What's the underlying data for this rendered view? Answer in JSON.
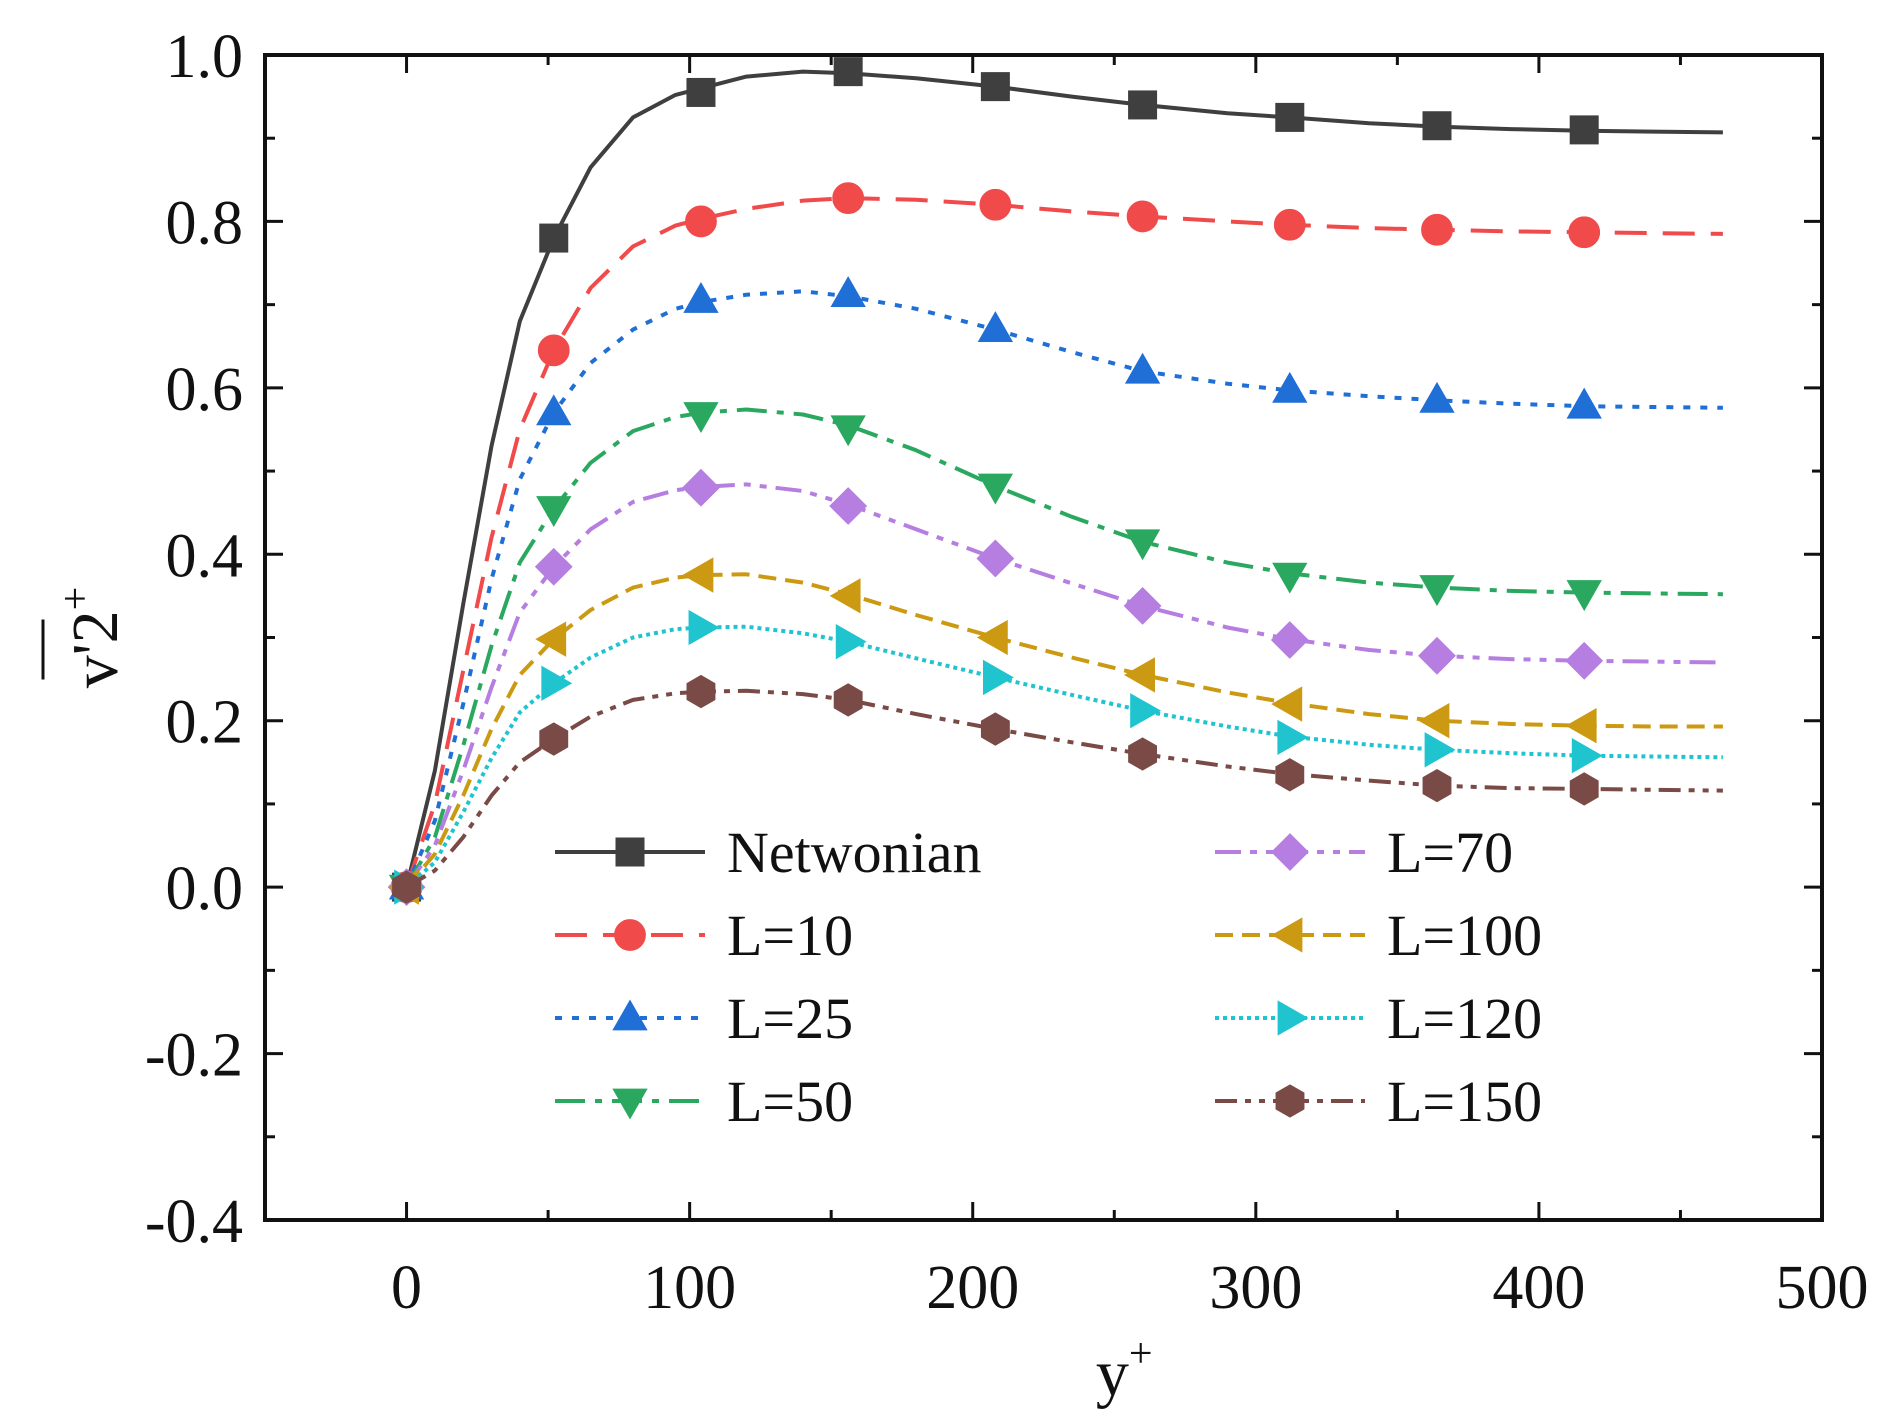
{
  "chart_data": {
    "type": "line",
    "title": "",
    "xlabel": "y",
    "xlabel_sup": "+",
    "ylabel": "v'2",
    "ylabel_sup": "+",
    "xlim": [
      -50,
      500
    ],
    "ylim": [
      -0.4,
      1.0
    ],
    "xticks": [
      0,
      100,
      200,
      300,
      400,
      500
    ],
    "yticks": [
      -0.4,
      -0.2,
      0.0,
      0.2,
      0.4,
      0.6,
      0.8,
      1.0
    ],
    "xtick_labels": [
      "0",
      "100",
      "200",
      "300",
      "400",
      "500"
    ],
    "ytick_labels": [
      "-0.4",
      "-0.2",
      "0.0",
      "0.2",
      "0.4",
      "0.6",
      "0.8",
      "1.0"
    ],
    "grid": false,
    "legend_position": "lower-center",
    "x_markers": [
      0,
      52,
      104,
      156,
      208,
      260,
      312,
      364,
      416
    ],
    "series": [
      {
        "name": "Netwonian",
        "color": "#3f3f3f",
        "marker": "square",
        "dash": "solid",
        "values": [
          0.0,
          0.78,
          0.955,
          0.98,
          0.962,
          0.94,
          0.925,
          0.915,
          0.91
        ],
        "curve_x": [
          0,
          10,
          20,
          30,
          40,
          52,
          65,
          80,
          95,
          104,
          120,
          140,
          156,
          180,
          208,
          235,
          260,
          290,
          312,
          340,
          364,
          390,
          416,
          440,
          465
        ],
        "curve_y": [
          0.0,
          0.14,
          0.34,
          0.53,
          0.68,
          0.78,
          0.865,
          0.925,
          0.952,
          0.96,
          0.974,
          0.98,
          0.978,
          0.972,
          0.962,
          0.95,
          0.94,
          0.93,
          0.925,
          0.918,
          0.914,
          0.911,
          0.909,
          0.908,
          0.907
        ]
      },
      {
        "name": "L=10",
        "color": "#f04a4a",
        "marker": "circle",
        "dash": "32,16",
        "values": [
          0.0,
          0.645,
          0.8,
          0.828,
          0.82,
          0.806,
          0.796,
          0.79,
          0.787
        ],
        "curve_x": [
          0,
          10,
          20,
          30,
          40,
          52,
          65,
          80,
          95,
          104,
          120,
          140,
          156,
          180,
          208,
          235,
          260,
          290,
          312,
          340,
          364,
          390,
          416,
          440,
          465
        ],
        "curve_y": [
          0.0,
          0.1,
          0.26,
          0.42,
          0.55,
          0.645,
          0.72,
          0.77,
          0.795,
          0.803,
          0.815,
          0.825,
          0.828,
          0.826,
          0.82,
          0.812,
          0.806,
          0.8,
          0.796,
          0.792,
          0.79,
          0.788,
          0.787,
          0.786,
          0.785
        ]
      },
      {
        "name": "L=25",
        "color": "#1f6fd6",
        "marker": "triangle-up",
        "dash": "7,10",
        "values": [
          0.0,
          0.57,
          0.705,
          0.712,
          0.67,
          0.62,
          0.597,
          0.585,
          0.578
        ],
        "curve_x": [
          0,
          10,
          20,
          30,
          40,
          52,
          65,
          80,
          95,
          104,
          120,
          140,
          156,
          180,
          208,
          235,
          260,
          290,
          312,
          340,
          364,
          390,
          416,
          440,
          465
        ],
        "curve_y": [
          0.0,
          0.08,
          0.22,
          0.37,
          0.49,
          0.57,
          0.63,
          0.67,
          0.695,
          0.703,
          0.712,
          0.716,
          0.71,
          0.695,
          0.67,
          0.643,
          0.62,
          0.605,
          0.597,
          0.59,
          0.585,
          0.581,
          0.578,
          0.577,
          0.576
        ]
      },
      {
        "name": "L=50",
        "color": "#2aa85f",
        "marker": "triangle-down",
        "dash": "30,10,7,10",
        "values": [
          0.0,
          0.455,
          0.568,
          0.552,
          0.482,
          0.415,
          0.375,
          0.36,
          0.354
        ],
        "curve_x": [
          0,
          10,
          20,
          30,
          40,
          52,
          65,
          80,
          95,
          104,
          120,
          140,
          156,
          180,
          208,
          235,
          260,
          290,
          312,
          340,
          364,
          390,
          416,
          440,
          465
        ],
        "curve_y": [
          0.0,
          0.06,
          0.17,
          0.29,
          0.39,
          0.455,
          0.51,
          0.548,
          0.565,
          0.57,
          0.574,
          0.568,
          0.555,
          0.525,
          0.482,
          0.445,
          0.415,
          0.39,
          0.377,
          0.366,
          0.36,
          0.356,
          0.354,
          0.353,
          0.352
        ]
      },
      {
        "name": "L=70",
        "color": "#b57ee0",
        "marker": "diamond",
        "dash": "26,9,7,9,7,9",
        "values": [
          0.0,
          0.385,
          0.48,
          0.458,
          0.395,
          0.338,
          0.297,
          0.278,
          0.272
        ],
        "curve_x": [
          0,
          10,
          20,
          30,
          40,
          52,
          65,
          80,
          95,
          104,
          120,
          140,
          156,
          180,
          208,
          235,
          260,
          290,
          312,
          340,
          364,
          390,
          416,
          440,
          465
        ],
        "curve_y": [
          0.0,
          0.05,
          0.14,
          0.24,
          0.33,
          0.385,
          0.43,
          0.463,
          0.477,
          0.481,
          0.484,
          0.476,
          0.46,
          0.43,
          0.395,
          0.365,
          0.338,
          0.312,
          0.298,
          0.285,
          0.278,
          0.274,
          0.272,
          0.271,
          0.27
        ]
      },
      {
        "name": "L=100",
        "color": "#cc9a12",
        "marker": "triangle-left",
        "dash": "18,9",
        "values": [
          0.0,
          0.298,
          0.375,
          0.35,
          0.3,
          0.255,
          0.22,
          0.2,
          0.194
        ],
        "curve_x": [
          0,
          10,
          20,
          30,
          40,
          52,
          65,
          80,
          95,
          104,
          120,
          140,
          156,
          180,
          208,
          235,
          260,
          290,
          312,
          340,
          364,
          390,
          416,
          440,
          465
        ],
        "curve_y": [
          0.0,
          0.04,
          0.11,
          0.19,
          0.255,
          0.298,
          0.333,
          0.36,
          0.372,
          0.375,
          0.376,
          0.366,
          0.352,
          0.327,
          0.3,
          0.276,
          0.255,
          0.234,
          0.221,
          0.208,
          0.2,
          0.196,
          0.194,
          0.193,
          0.193
        ]
      },
      {
        "name": "L=120",
        "color": "#1fc4cf",
        "marker": "triangle-right",
        "dash": "4,4",
        "values": [
          0.0,
          0.245,
          0.312,
          0.295,
          0.252,
          0.212,
          0.18,
          0.165,
          0.158
        ],
        "curve_x": [
          0,
          10,
          20,
          30,
          40,
          52,
          65,
          80,
          95,
          104,
          120,
          140,
          156,
          180,
          208,
          235,
          260,
          290,
          312,
          340,
          364,
          390,
          416,
          440,
          465
        ],
        "curve_y": [
          0.0,
          0.03,
          0.09,
          0.155,
          0.21,
          0.245,
          0.276,
          0.3,
          0.31,
          0.312,
          0.313,
          0.305,
          0.295,
          0.275,
          0.252,
          0.231,
          0.212,
          0.193,
          0.181,
          0.171,
          0.165,
          0.161,
          0.158,
          0.157,
          0.156
        ]
      },
      {
        "name": "L=150",
        "color": "#7a4a46",
        "marker": "hexagon",
        "dash": "22,8,6,8,6,8",
        "values": [
          0.0,
          0.178,
          0.235,
          0.225,
          0.19,
          0.16,
          0.135,
          0.122,
          0.118
        ],
        "curve_x": [
          0,
          10,
          20,
          30,
          40,
          52,
          65,
          80,
          95,
          104,
          120,
          140,
          156,
          180,
          208,
          235,
          260,
          290,
          312,
          340,
          364,
          390,
          416,
          440,
          465
        ],
        "curve_y": [
          0.0,
          0.02,
          0.06,
          0.11,
          0.15,
          0.178,
          0.205,
          0.225,
          0.233,
          0.235,
          0.236,
          0.232,
          0.225,
          0.208,
          0.19,
          0.174,
          0.16,
          0.145,
          0.136,
          0.128,
          0.122,
          0.119,
          0.118,
          0.117,
          0.116
        ]
      }
    ]
  }
}
